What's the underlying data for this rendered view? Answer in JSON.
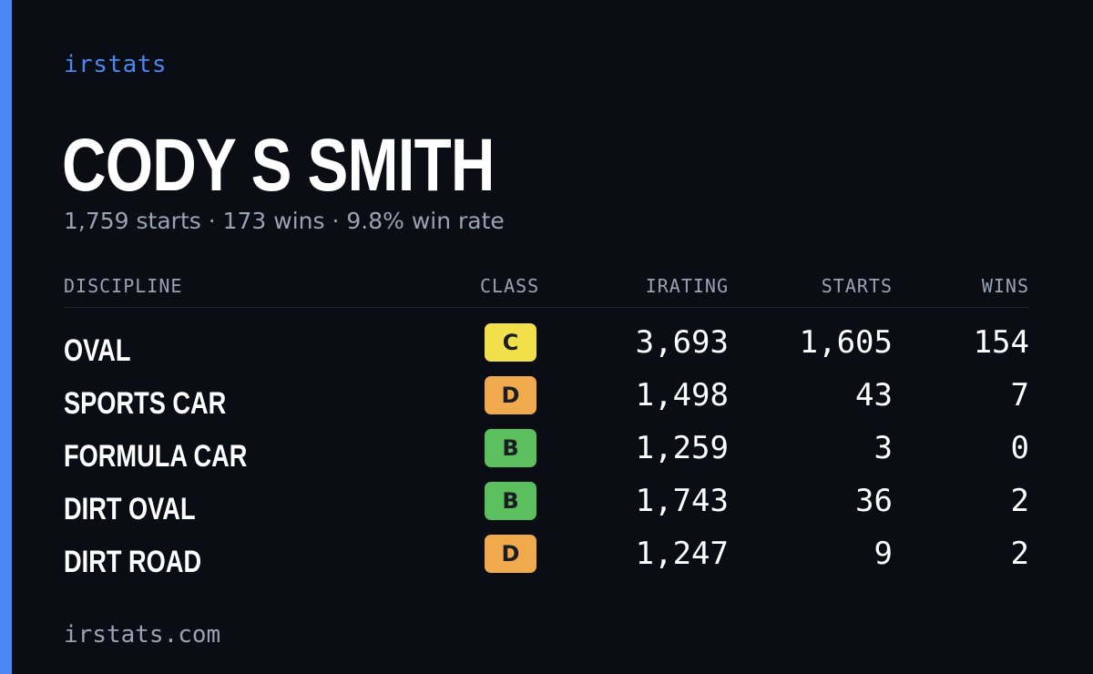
{
  "brand": "irstats",
  "driver": {
    "name": "CODY S SMITH",
    "summary": "1,759 starts · 173 wins · 9.8% win rate"
  },
  "table": {
    "headers": {
      "discipline": "DISCIPLINE",
      "class": "CLASS",
      "irating": "IRATING",
      "starts": "STARTS",
      "wins": "WINS"
    },
    "rows": [
      {
        "discipline": "OVAL",
        "class": "C",
        "class_color": "#f2e04a",
        "irating": "3,693",
        "starts": "1,605",
        "wins": "154"
      },
      {
        "discipline": "SPORTS CAR",
        "class": "D",
        "class_color": "#f0a94c",
        "irating": "1,498",
        "starts": "43",
        "wins": "7"
      },
      {
        "discipline": "FORMULA CAR",
        "class": "B",
        "class_color": "#5bbf5d",
        "irating": "1,259",
        "starts": "3",
        "wins": "0"
      },
      {
        "discipline": "DIRT OVAL",
        "class": "B",
        "class_color": "#5bbf5d",
        "irating": "1,743",
        "starts": "36",
        "wins": "2"
      },
      {
        "discipline": "DIRT ROAD",
        "class": "D",
        "class_color": "#f0a94c",
        "irating": "1,247",
        "starts": "9",
        "wins": "2"
      }
    ]
  },
  "footer": "irstats.com",
  "colors": {
    "accent": "#4a86f4",
    "background": "#0a0d14",
    "muted_text": "#9aa3b3"
  }
}
